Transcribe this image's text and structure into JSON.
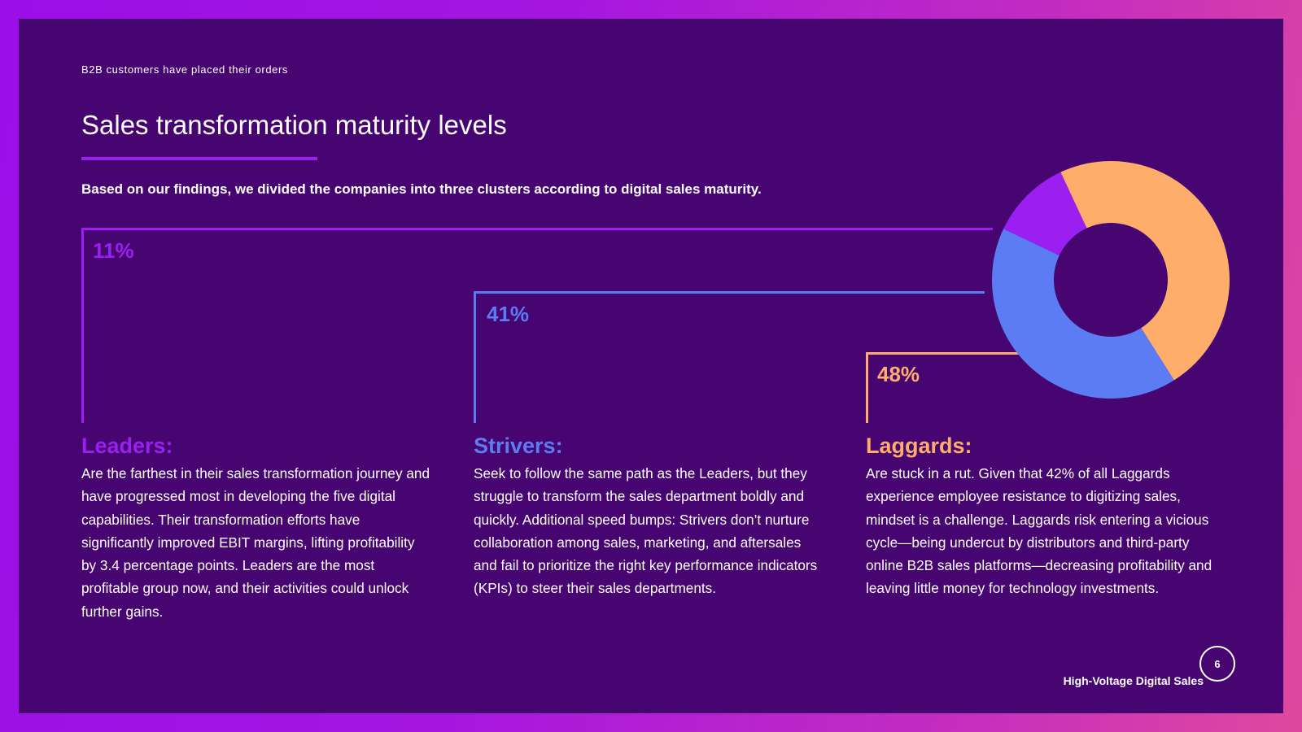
{
  "header": {
    "kicker": "B2B customers have placed their orders",
    "title": "Sales transformation maturity levels",
    "intro": "Based on our findings, we divided the companies into three clusters according to digital sales maturity."
  },
  "clusters": [
    {
      "percent": "11%",
      "name": "Leaders:",
      "color": "#9a1ff0",
      "description": "Are the farthest in their sales transformation journey and have progressed most in developing the five digital capabilities. Their transformation efforts have significantly improved EBIT margins, lifting profitability by 3.4 percentage points. Leaders are the most profitable group now, and their activities could unlock further gains."
    },
    {
      "percent": "41%",
      "name": "Strivers:",
      "color": "#5b7cf2",
      "description": "Seek to follow the same path as the Leaders, but they struggle to transform the sales department boldly and quickly. Additional speed bumps: Strivers don’t nurture collaboration among sales, marketing, and aftersales and fail to prioritize the right key performance indicators (KPIs) to steer their sales departments."
    },
    {
      "percent": "48%",
      "name": "Laggards:",
      "color": "#ffad6a",
      "description": "Are stuck in a rut. Given that 42% of all Laggards experience employee resistance to digitizing sales, mindset is a challenge. Laggards risk entering a vicious cycle—being undercut by distributors and third-party online B2B sales platforms—decreasing profitability and leaving little money for technology investments."
    }
  ],
  "chart_data": {
    "type": "pie",
    "donut": true,
    "categories": [
      "Laggards",
      "Strivers",
      "Leaders"
    ],
    "values": [
      48,
      41,
      11
    ],
    "colors": [
      "#ffad6a",
      "#5b7cf2",
      "#9a1ff0"
    ]
  },
  "footer": {
    "label": "High-Voltage Digital Sales",
    "page": "6"
  }
}
